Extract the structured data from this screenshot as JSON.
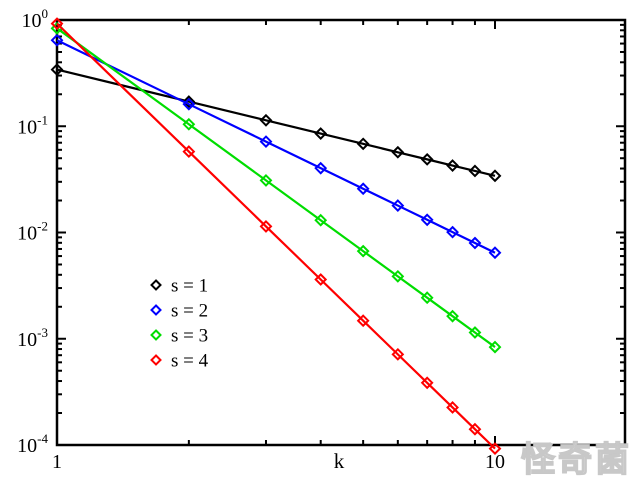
{
  "watermark": {
    "text": "怪奇菌"
  },
  "chart_data": {
    "type": "line",
    "title": "",
    "xlabel": "k",
    "ylabel": "",
    "x_scale": "log",
    "y_scale": "log",
    "xlim": [
      1,
      19.8
    ],
    "ylim": [
      0.0001,
      1
    ],
    "grid": false,
    "legend_position": "center-left",
    "x": [
      1,
      2,
      3,
      4,
      5,
      6,
      7,
      8,
      9,
      10
    ],
    "series": [
      {
        "name": "s = 1",
        "color": "#000000",
        "values": [
          0.34142,
          0.17071,
          0.11381,
          0.085355,
          0.068284,
          0.056903,
          0.048774,
          0.042677,
          0.037936,
          0.034142
        ]
      },
      {
        "name": "s = 2",
        "color": "#0000ff",
        "values": [
          0.64526,
          0.16131,
          0.071695,
          0.040329,
          0.02581,
          0.017924,
          0.013169,
          0.010082,
          0.0079662,
          0.0064526
        ]
      },
      {
        "name": "s = 3",
        "color": "#00dd00",
        "values": [
          0.83505,
          0.10438,
          0.030928,
          0.013048,
          0.0066804,
          0.0038659,
          0.0024345,
          0.001631,
          0.0011454,
          0.00083505
        ]
      },
      {
        "name": "s = 4",
        "color": "#ff0000",
        "values": [
          0.92418,
          0.057761,
          0.01141,
          0.0036101,
          0.0014787,
          0.0007131,
          0.00038494,
          0.00022563,
          0.00014086,
          9.2418e-05
        ]
      }
    ],
    "x_tick_labels": [
      {
        "text": "1",
        "value": 1
      },
      {
        "text": "10",
        "value": 10
      }
    ],
    "y_tick_labels": [
      {
        "mantissa": "10",
        "exponent": "0",
        "value": 1
      },
      {
        "mantissa": "10",
        "exponent": "-1",
        "value": 0.1
      },
      {
        "mantissa": "10",
        "exponent": "-2",
        "value": 0.01
      },
      {
        "mantissa": "10",
        "exponent": "-3",
        "value": 0.001
      },
      {
        "mantissa": "10",
        "exponent": "-4",
        "value": 0.0001
      }
    ],
    "axis_color": "#000000"
  }
}
